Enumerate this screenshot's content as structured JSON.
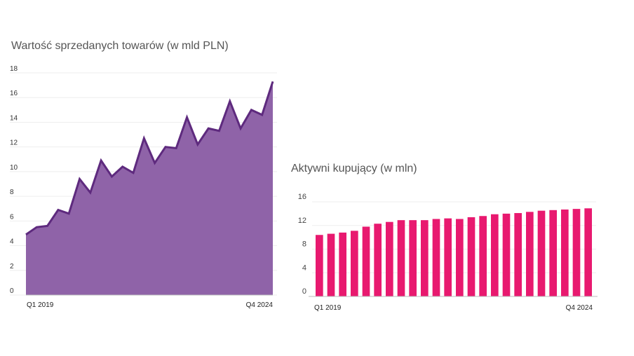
{
  "chart_data": [
    {
      "type": "area",
      "title": "Wartość sprzedanych towarów (w mld PLN)",
      "ylim": [
        0,
        18
      ],
      "yticks": [
        0,
        2,
        4,
        6,
        8,
        10,
        12,
        14,
        16,
        18
      ],
      "x_first_label": "Q1 2019",
      "x_last_label": "Q4 2024",
      "values": [
        4.9,
        5.5,
        5.6,
        6.9,
        6.6,
        9.4,
        8.3,
        10.9,
        9.6,
        10.4,
        9.9,
        12.7,
        10.7,
        12.0,
        11.9,
        14.4,
        12.2,
        13.5,
        13.3,
        15.7,
        13.5,
        15.0,
        14.6,
        17.3
      ],
      "color_fill": "#8f63a8",
      "color_line": "#5e2a7e"
    },
    {
      "type": "bar",
      "title": "Aktywni kupujący (w mln)",
      "ylim": [
        0,
        16
      ],
      "yticks": [
        0,
        4,
        8,
        12,
        16
      ],
      "x_first_label": "Q1 2019",
      "x_last_label": "Q4 2024",
      "values": [
        10.4,
        10.6,
        10.8,
        11.1,
        11.8,
        12.3,
        12.6,
        12.9,
        12.9,
        12.9,
        13.1,
        13.2,
        13.1,
        13.4,
        13.6,
        13.9,
        14.0,
        14.1,
        14.3,
        14.5,
        14.6,
        14.7,
        14.8,
        14.9
      ],
      "color_bar": "#e8196f"
    }
  ]
}
